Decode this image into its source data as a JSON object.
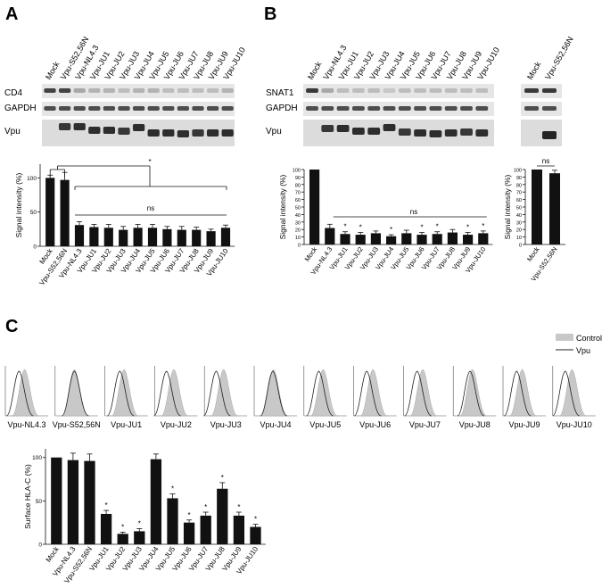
{
  "figure": {
    "panels": {
      "A": {
        "letter": "A",
        "lanes": [
          "Mock",
          "Vpu-S52,56N",
          "Vpu-NL4.3",
          "Vpu-JU1",
          "Vpu-JU2",
          "Vpu-JU3",
          "Vpu-JU4",
          "Vpu-JU5",
          "Vpu-JU6",
          "Vpu-JU7",
          "Vpu-JU8",
          "Vpu-JU9",
          "Vpu-JU10"
        ],
        "blots": [
          "CD4",
          "GAPDH",
          "Vpu"
        ],
        "significance": [
          "*",
          "ns"
        ]
      },
      "B": {
        "letter": "B",
        "lanes": [
          "Mock",
          "Vpu-NL4.3",
          "Vpu-JU1",
          "Vpu-JU2",
          "Vpu-JU3",
          "Vpu-JU4",
          "Vpu-JU5",
          "Vpu-JU6",
          "Vpu-JU7",
          "Vpu-JU8",
          "Vpu-JU9",
          "Vpu-JU10"
        ],
        "lanes_right": [
          "Mock",
          "Vpu-S52,56N"
        ],
        "blots": [
          "SNAT1",
          "GAPDH",
          "Vpu"
        ],
        "significance": [
          "ns",
          "*",
          "ns"
        ]
      },
      "C": {
        "letter": "C",
        "legend": [
          "Control",
          "Vpu"
        ],
        "histogram_labels": [
          "Vpu-NL4.3",
          "Vpu-S52,56N",
          "Vpu-JU1",
          "Vpu-JU2",
          "Vpu-JU3",
          "Vpu-JU4",
          "Vpu-JU5",
          "Vpu-JU6",
          "Vpu-JU7",
          "Vpu-JU8",
          "Vpu-JU9",
          "Vpu-JU10"
        ],
        "star": "*"
      }
    }
  },
  "chart_data": [
    {
      "id": "A",
      "type": "bar",
      "ylabel": "Signal intensity (%)",
      "ylim": [
        0,
        120
      ],
      "yticks": [
        0,
        50,
        100
      ],
      "categories": [
        "Mock",
        "Vpu-S52,56N",
        "Vpu-NL4.3",
        "Vpu-JU1",
        "Vpu-JU2",
        "Vpu-JU3",
        "Vpu-JU4",
        "Vpu-JU5",
        "Vpu-JU6",
        "Vpu-JU7",
        "Vpu-JU8",
        "Vpu-JU9",
        "Vpu-JU10"
      ],
      "values": [
        100,
        97,
        31,
        28,
        27,
        24,
        27,
        27,
        25,
        24,
        24,
        22,
        27
      ],
      "errors": [
        4,
        11,
        5,
        4,
        5,
        5,
        5,
        5,
        4,
        5,
        4,
        3,
        4
      ],
      "annotations": [
        "*",
        "ns"
      ]
    },
    {
      "id": "B-left",
      "type": "bar",
      "ylabel": "Signal intensity (%)",
      "ylim": [
        0,
        100
      ],
      "yticks": [
        0,
        10,
        20,
        30,
        40,
        50,
        60,
        70,
        80,
        90,
        100
      ],
      "categories": [
        "Mock",
        "Vpu-NL4.3",
        "Vpu-JU1",
        "Vpu-JU2",
        "Vpu-JU3",
        "Vpu-JU4",
        "Vpu-JU5",
        "Vpu-JU6",
        "Vpu-JU7",
        "Vpu-JU8",
        "Vpu-JU9",
        "Vpu-JU10"
      ],
      "values": [
        100,
        22,
        14,
        13,
        15,
        11,
        15,
        13,
        14,
        16,
        13,
        15
      ],
      "errors": [
        0,
        5,
        3,
        3,
        3,
        2,
        4,
        3,
        3,
        4,
        3,
        3
      ],
      "stars": [
        false,
        false,
        true,
        true,
        false,
        true,
        false,
        true,
        true,
        false,
        true,
        true
      ],
      "annotations": [
        "ns",
        "*"
      ]
    },
    {
      "id": "B-right",
      "type": "bar",
      "ylabel": "Signal intensity (%)",
      "ylim": [
        0,
        100
      ],
      "yticks": [
        0,
        10,
        20,
        30,
        40,
        50,
        60,
        70,
        80,
        90,
        100
      ],
      "categories": [
        "Mock",
        "Vpu-S52,56N"
      ],
      "values": [
        100,
        95
      ],
      "errors": [
        0,
        4
      ],
      "annotations": [
        "ns"
      ]
    },
    {
      "id": "C",
      "type": "bar",
      "ylabel": "Surface HLA-C (%)",
      "ylim": [
        0,
        110
      ],
      "yticks": [
        0,
        50,
        100
      ],
      "categories": [
        "Mock",
        "Vpu-NL4.3",
        "Vpu-S52,56N",
        "Vpu-JU1",
        "Vpu-JU2",
        "Vpu-JU3",
        "Vpu-JU4",
        "Vpu-JU5",
        "Vpu-JU6",
        "Vpu-JU7",
        "Vpu-JU8",
        "Vpu-JU9",
        "Vpu-JU10"
      ],
      "values": [
        100,
        97,
        96,
        35,
        12,
        15,
        98,
        53,
        25,
        33,
        64,
        33,
        20
      ],
      "errors": [
        0,
        8,
        8,
        4,
        2,
        3,
        6,
        5,
        3,
        4,
        7,
        4,
        3
      ],
      "stars": [
        false,
        false,
        false,
        true,
        true,
        true,
        false,
        true,
        true,
        true,
        true,
        true,
        true
      ],
      "annotations": [
        "*"
      ]
    }
  ]
}
